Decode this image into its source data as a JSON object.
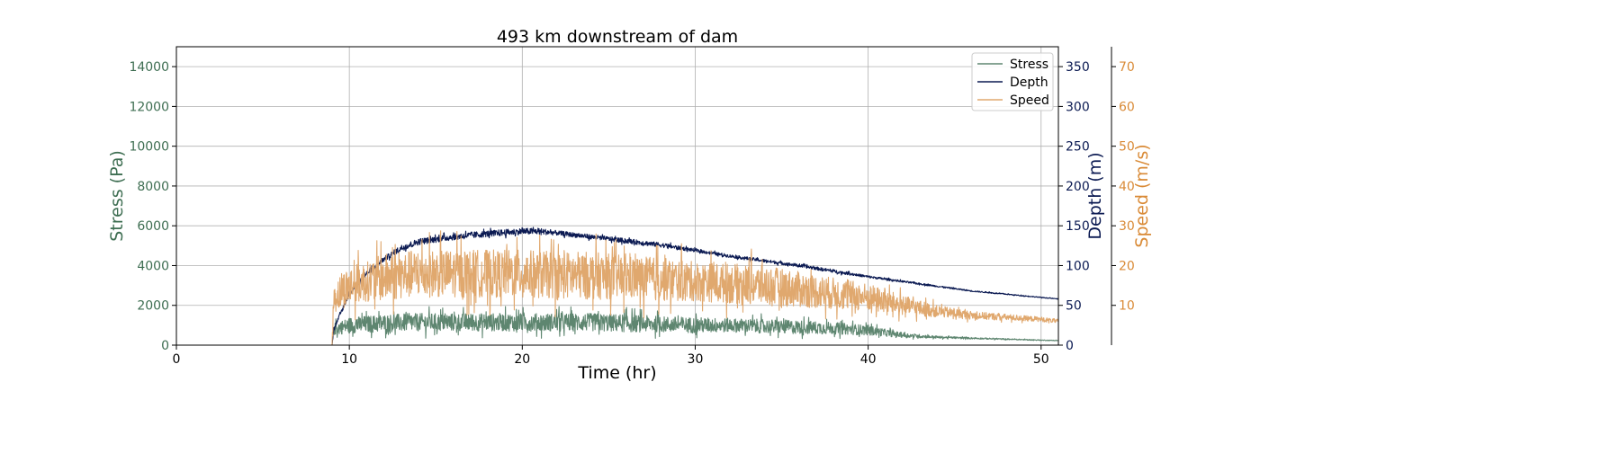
{
  "chart_data": {
    "type": "line",
    "title": "493 km downstream of dam",
    "xlabel": "Time (hr)",
    "xlim": [
      0,
      51
    ],
    "xticks": [
      0,
      10,
      20,
      30,
      40,
      50
    ],
    "grid": true,
    "legend": "top-right",
    "axes": {
      "stress": {
        "label": "Stress (Pa)",
        "ylim": [
          0,
          15000
        ],
        "ticks": [
          0,
          2000,
          4000,
          6000,
          8000,
          10000,
          12000,
          14000
        ],
        "color": "#3e6e52"
      },
      "depth": {
        "label": "Depth (m)",
        "ylim": [
          0,
          375
        ],
        "ticks": [
          0,
          50,
          100,
          150,
          200,
          250,
          300,
          350
        ],
        "color": "#0b1a52"
      },
      "speed": {
        "label": "Speed (m/s)",
        "ylim": [
          0,
          75
        ],
        "ticks": [
          10,
          20,
          30,
          40,
          50,
          60,
          70
        ],
        "color": "#d98a36"
      }
    },
    "series": [
      {
        "name": "Stress",
        "axis": "stress",
        "color": "#5e8670",
        "x": [
          0,
          9,
          9.1,
          10,
          12,
          14,
          16,
          18,
          20,
          22,
          24,
          26,
          28,
          30,
          32,
          34,
          36,
          38,
          40,
          42,
          44,
          46,
          48,
          50,
          51
        ],
        "y": [
          0,
          0,
          800,
          1000,
          1100,
          1150,
          1150,
          1150,
          1150,
          1150,
          1150,
          1100,
          1050,
          1000,
          1000,
          950,
          900,
          850,
          750,
          500,
          400,
          350,
          300,
          250,
          230
        ],
        "spread": [
          0,
          0,
          300,
          400,
          450,
          450,
          450,
          450,
          450,
          450,
          450,
          450,
          400,
          400,
          350,
          350,
          350,
          300,
          250,
          120,
          60,
          40,
          30,
          20,
          15
        ]
      },
      {
        "name": "Depth",
        "axis": "depth",
        "color": "#0b1a52",
        "x": [
          0,
          9,
          9.1,
          10,
          11,
          12,
          13,
          14,
          16,
          18,
          20,
          21,
          22,
          24,
          26,
          28,
          30,
          32,
          34,
          36,
          38,
          40,
          42,
          44,
          46,
          48,
          50,
          51
        ],
        "y": [
          0,
          0,
          20,
          65,
          90,
          108,
          122,
          130,
          136,
          140,
          143,
          143,
          141,
          136,
          131,
          126,
          119,
          112,
          106,
          100,
          93,
          86,
          80,
          74,
          68,
          64,
          60,
          58
        ],
        "spread": [
          0,
          0,
          2,
          3,
          3,
          3,
          4,
          4,
          4,
          4,
          4,
          4,
          3,
          3,
          3,
          3,
          2,
          2,
          2,
          2,
          2,
          1.5,
          1.2,
          1,
          0.8,
          0.6,
          0.5,
          0.4
        ]
      },
      {
        "name": "Speed",
        "axis": "speed",
        "color": "#e0a86e",
        "x": [
          0,
          9,
          9.1,
          10,
          11,
          12,
          14,
          16,
          18,
          20,
          22,
          24,
          26,
          28,
          30,
          32,
          34,
          36,
          38,
          40,
          42,
          44,
          46,
          48,
          50,
          51
        ],
        "y": [
          0,
          0,
          12,
          15,
          16,
          17,
          18,
          18,
          18,
          18,
          17.5,
          17.5,
          17,
          16.5,
          16,
          15.5,
          15,
          14,
          13,
          12,
          10,
          8.5,
          7.5,
          7,
          6.5,
          6
        ],
        "spread": [
          0,
          0,
          4,
          5,
          5,
          6,
          6,
          6,
          6,
          6,
          6,
          6,
          5.5,
          5.5,
          5,
          5,
          5,
          4.5,
          4,
          3.5,
          2.5,
          1.5,
          1,
          0.8,
          0.6,
          0.5
        ]
      }
    ]
  }
}
